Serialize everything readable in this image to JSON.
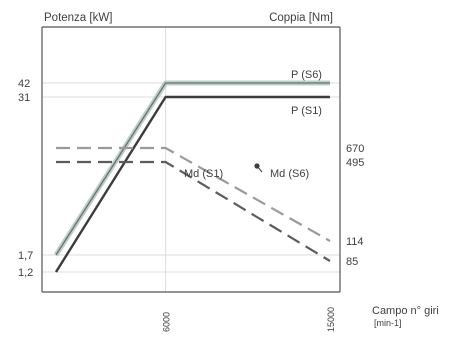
{
  "chart_data": {
    "type": "line",
    "ylabel_left": "Potenza [kW]",
    "ylabel_right": "Coppia [Nm]",
    "xlabel_line1": "Campo n° giri",
    "xlabel_line2": "[min-1]",
    "left_ticks": [
      "42",
      "31",
      "1,7",
      "1,2"
    ],
    "right_ticks": [
      "670",
      "495",
      "114",
      "85"
    ],
    "x_ticks": [
      "6000",
      "15000"
    ],
    "series": [
      {
        "name": "P (S6)",
        "axis": "left",
        "x": [
          0,
          6000,
          15000
        ],
        "y": [
          1.7,
          42,
          42
        ]
      },
      {
        "name": "P (S1)",
        "axis": "left",
        "x": [
          0,
          6000,
          15000
        ],
        "y": [
          1.2,
          31,
          31
        ]
      },
      {
        "name": "Md (S6)",
        "axis": "right",
        "x": [
          0,
          6000,
          15000
        ],
        "y": [
          670,
          670,
          114
        ]
      },
      {
        "name": "Md (S1)",
        "axis": "right",
        "x": [
          0,
          6000,
          15000
        ],
        "y": [
          495,
          495,
          85
        ]
      }
    ],
    "colors": {
      "s6": "#b9cfc7",
      "s1": "#3c3c3c",
      "dash_s6": "#9a9a9a",
      "dash_s1": "#5c5c5c"
    }
  }
}
